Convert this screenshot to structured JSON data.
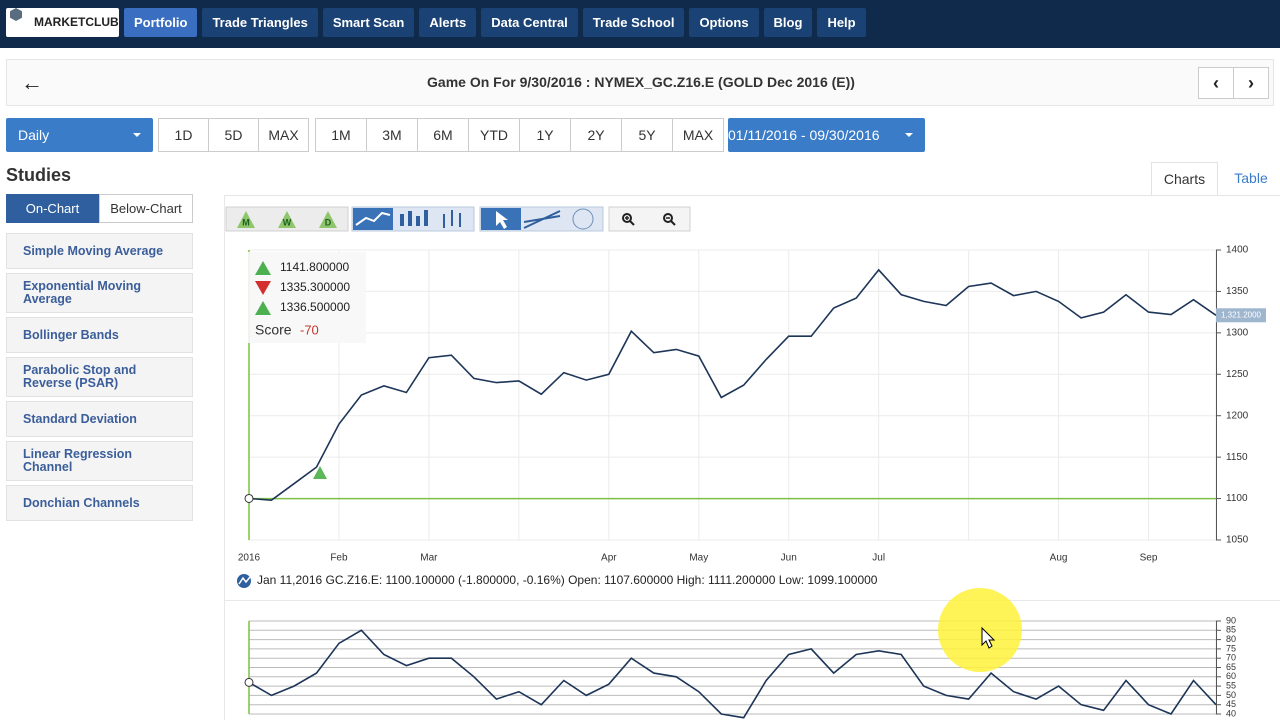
{
  "nav": {
    "logo": "MARKETCLUB",
    "items": [
      "Portfolio",
      "Trade Triangles",
      "Smart Scan",
      "Alerts",
      "Data Central",
      "Trade School",
      "Options",
      "Blog",
      "Help"
    ],
    "active_index": 0
  },
  "header": {
    "title": "Game On For 9/30/2016 : NYMEX_GC.Z16.E (GOLD Dec 2016 (E))"
  },
  "controls": {
    "period": "Daily",
    "range_group_1": [
      "1D",
      "5D",
      "MAX"
    ],
    "range_group_2": [
      "1M",
      "3M",
      "6M",
      "YTD",
      "1Y",
      "2Y",
      "5Y",
      "MAX"
    ],
    "date_range": "01/11/2016 - 09/30/2016"
  },
  "studies": {
    "title": "Studies",
    "tabs": [
      "On-Chart",
      "Below-Chart"
    ],
    "items": [
      "Simple Moving Average",
      "Exponential Moving Average",
      "Bollinger Bands",
      "Parabolic Stop and Reverse (PSAR)",
      "Standard Deviation",
      "Linear Regression Channel",
      "Donchian Channels"
    ]
  },
  "view_tabs": [
    "Charts",
    "Table"
  ],
  "toolbar": {
    "triangles": [
      "M",
      "W",
      "D"
    ]
  },
  "legend": {
    "triangles": [
      "1141.800000",
      "1335.300000",
      "1336.500000"
    ],
    "score_label": "Score",
    "score": -70
  },
  "info_line": "Jan 11,2016 GC.Z16.E: 1100.100000 (-1.800000, -0.16%) Open: 1107.600000 High: 1111.200000 Low: 1099.100000",
  "chart_data": [
    {
      "type": "line",
      "categories": [
        "2016",
        null,
        null,
        null,
        "Feb",
        null,
        null,
        null,
        "Mar",
        null,
        null,
        null,
        null,
        null,
        null,
        null,
        "Apr",
        null,
        null,
        null,
        "May",
        null,
        null,
        null,
        "Jun",
        null,
        null,
        null,
        "Jul",
        null,
        null,
        null,
        null,
        null,
        null,
        null,
        "Aug",
        null,
        null,
        null,
        "Sep",
        null,
        null,
        null
      ],
      "series": [
        {
          "color": "#1d3557",
          "values": [
            1100.1,
            1098,
            1118,
            1138,
            1190,
            1225,
            1236,
            1228,
            1270,
            1273,
            1245,
            1240,
            1242,
            1226,
            1252,
            1243,
            1250,
            1302,
            1276,
            1280,
            1272,
            1222,
            1237,
            1268,
            1296,
            1296,
            1330,
            1342,
            1376,
            1346,
            1338,
            1333,
            1356,
            1360,
            1345,
            1350,
            1338,
            1318,
            1325,
            1346,
            1325,
            1322,
            1340,
            1321.2
          ]
        }
      ],
      "ylim": [
        1050,
        1400
      ],
      "yticks": [
        1050,
        1100,
        1150,
        1200,
        1250,
        1300,
        1350,
        1400
      ],
      "grid": true,
      "reference_line": 1100,
      "reference_color": "#7cc142",
      "last_value_label": "1,321.2000"
    },
    {
      "type": "line",
      "series": [
        {
          "color": "#1d3557",
          "values": [
            57,
            50,
            55,
            62,
            78,
            85,
            72,
            66,
            70,
            70,
            60,
            48,
            52,
            45,
            58,
            50,
            56,
            70,
            62,
            60,
            52,
            40,
            38,
            58,
            72,
            75,
            62,
            72,
            74,
            72,
            55,
            50,
            48,
            62,
            52,
            48,
            55,
            45,
            42,
            58,
            45,
            40,
            58,
            45
          ]
        }
      ],
      "ylim": [
        40,
        90
      ],
      "yticks": [
        40,
        45,
        50,
        55,
        60,
        65,
        70,
        75,
        80,
        85,
        90
      ],
      "grid": true
    }
  ]
}
